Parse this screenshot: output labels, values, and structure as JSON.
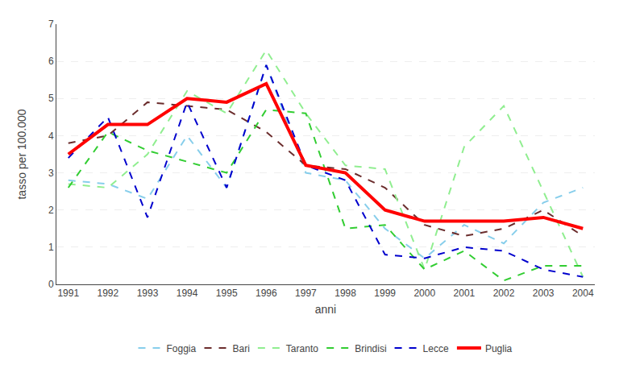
{
  "chart_data": {
    "type": "line",
    "x": [
      1991,
      1992,
      1993,
      1994,
      1995,
      1996,
      1997,
      1998,
      1999,
      2000,
      2001,
      2002,
      2003,
      2004
    ],
    "series": [
      {
        "name": "Foggia",
        "color": "#87CEEB",
        "line_style": "dashed",
        "values": [
          2.8,
          2.7,
          2.3,
          4.0,
          2.6,
          5.9,
          3.0,
          2.8,
          1.5,
          0.7,
          1.6,
          1.1,
          2.2,
          2.6
        ]
      },
      {
        "name": "Bari",
        "color": "#6B2D2D",
        "line_style": "dashed",
        "values": [
          3.8,
          4.0,
          4.9,
          4.8,
          4.7,
          4.1,
          3.2,
          3.1,
          2.6,
          1.6,
          1.3,
          1.5,
          2.0,
          1.3
        ]
      },
      {
        "name": "Taranto",
        "color": "#90EE90",
        "line_style": "dashed",
        "values": [
          2.7,
          2.6,
          3.5,
          5.2,
          4.6,
          6.3,
          4.6,
          3.2,
          3.1,
          0.4,
          3.7,
          4.8,
          2.5,
          0.2
        ]
      },
      {
        "name": "Brindisi",
        "color": "#32CD32",
        "line_style": "dashed",
        "values": [
          2.6,
          4.1,
          3.6,
          3.3,
          3.0,
          4.7,
          4.6,
          1.5,
          1.6,
          0.4,
          0.9,
          0.1,
          0.5,
          0.5
        ]
      },
      {
        "name": "Lecce",
        "color": "#0000CD",
        "line_style": "dashed",
        "values": [
          3.4,
          4.5,
          1.8,
          4.9,
          2.6,
          5.9,
          3.2,
          2.8,
          0.8,
          0.7,
          1.0,
          0.9,
          0.4,
          0.2
        ]
      },
      {
        "name": "Puglia",
        "color": "#FF0000",
        "line_style": "solid",
        "values": [
          3.5,
          4.3,
          4.3,
          5.0,
          4.9,
          5.4,
          3.2,
          3.0,
          2.0,
          1.7,
          1.7,
          1.7,
          1.8,
          1.5
        ]
      }
    ],
    "x_label": "anni",
    "y_label": "tasso per 100.000",
    "xlim": [
      1990.7,
      2004.3
    ],
    "xticks": [
      1991,
      1992,
      1993,
      1994,
      1995,
      1996,
      1997,
      1998,
      1999,
      2000,
      2001,
      2002,
      2003,
      2004
    ],
    "ylim": [
      0,
      7
    ],
    "yticks": [
      0,
      1,
      2,
      3,
      4,
      5,
      6,
      7
    ],
    "grid": true,
    "legend": "bottom"
  }
}
